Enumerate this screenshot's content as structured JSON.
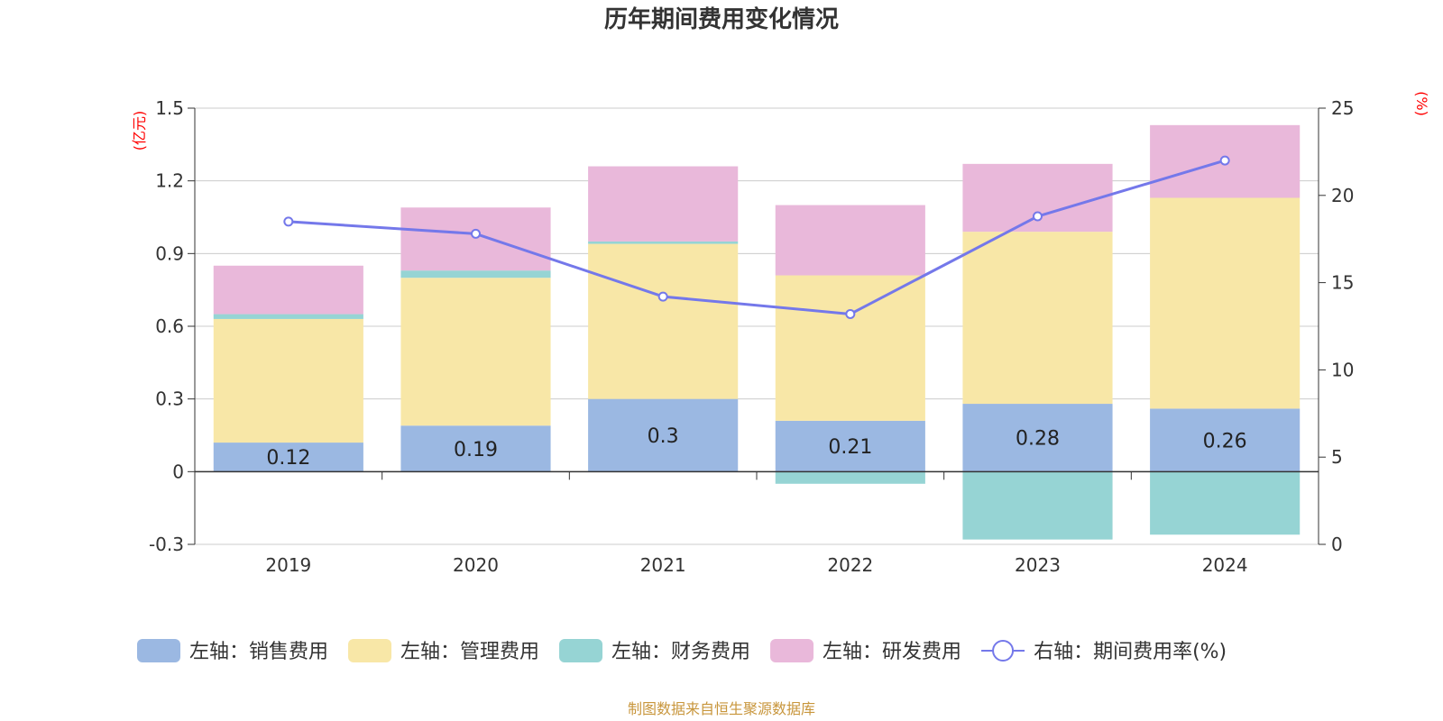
{
  "chart_data": {
    "type": "bar",
    "title": "历年期间费用变化情况",
    "categories": [
      "2019",
      "2020",
      "2021",
      "2022",
      "2023",
      "2024"
    ],
    "left_axis": {
      "unit": "(亿元)",
      "min": -0.3,
      "max": 1.5,
      "ticks": [
        -0.3,
        0,
        0.3,
        0.6,
        0.9,
        1.2,
        1.5
      ]
    },
    "right_axis": {
      "unit": "(%)",
      "min": 0,
      "max": 25,
      "ticks": [
        0,
        5,
        10,
        15,
        20,
        25
      ]
    },
    "series": [
      {
        "name": "左轴：销售费用",
        "type": "bar",
        "axis": "left",
        "color": "#9bb8e2",
        "values": [
          0.12,
          0.19,
          0.3,
          0.21,
          0.28,
          0.26
        ],
        "labels": [
          "0.12",
          "0.19",
          "0.3",
          "0.21",
          "0.28",
          "0.26"
        ]
      },
      {
        "name": "左轴：管理费用",
        "type": "bar",
        "axis": "left",
        "color": "#f8e7a7",
        "values": [
          0.51,
          0.61,
          0.64,
          0.6,
          0.71,
          0.87
        ]
      },
      {
        "name": "左轴：财务费用",
        "type": "bar",
        "axis": "left",
        "color": "#96d4d4",
        "values": [
          0.02,
          0.03,
          0.01,
          -0.05,
          -0.28,
          -0.26
        ]
      },
      {
        "name": "左轴：研发费用",
        "type": "bar",
        "axis": "left",
        "color": "#e9b8da",
        "values": [
          0.2,
          0.26,
          0.31,
          0.29,
          0.28,
          0.3
        ]
      },
      {
        "name": "右轴：期间费用率(%)",
        "type": "line",
        "axis": "right",
        "color": "#7478ea",
        "values": [
          18.5,
          17.8,
          14.2,
          13.2,
          18.8,
          22
        ]
      }
    ]
  },
  "source": "制图数据来自恒生聚源数据库"
}
